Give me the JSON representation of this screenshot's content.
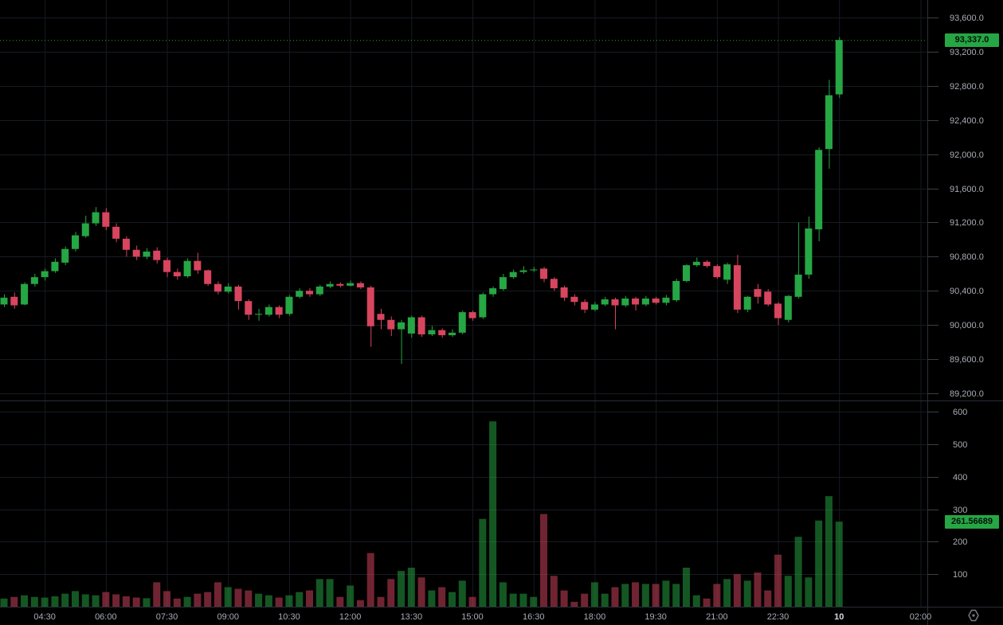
{
  "app": {
    "theme": "dark",
    "bg_color": "#000000",
    "grid_color": "#161a22",
    "separator_color": "#2a2e39",
    "axis_text_color": "#a9acb5",
    "axis_bold_text_color": "#d6d9e0",
    "up_color": "#26a644",
    "down_color": "#d7455e",
    "volume_opacity": 0.52,
    "last_price_label": {
      "text": "93,337.0",
      "bg": "#26a644"
    },
    "last_volume_label": {
      "text": "261.56689",
      "bg": "#26a644"
    },
    "icons": [
      {
        "name": "timezone-settings-icon",
        "glyph": "hexagon-dot",
        "color": "#787b86"
      }
    ]
  },
  "chart_data": {
    "type": "candlestick",
    "title": "",
    "interval": "15m",
    "legend_position": "none",
    "grid": true,
    "panes": [
      {
        "name": "price",
        "ylim": [
          89200,
          93600
        ],
        "ticks": [
          {
            "v": 93600,
            "label": "93,600.0"
          },
          {
            "v": 93200,
            "label": "93,200.0"
          },
          {
            "v": 92800,
            "label": "92,800.0"
          },
          {
            "v": 92400,
            "label": "92,400.0"
          },
          {
            "v": 92000,
            "label": "92,000.0"
          },
          {
            "v": 91600,
            "label": "91,600.0"
          },
          {
            "v": 91200,
            "label": "91,200.0"
          },
          {
            "v": 90800,
            "label": "90,800.0"
          },
          {
            "v": 90400,
            "label": "90,400.0"
          },
          {
            "v": 90000,
            "label": "90,000.0"
          },
          {
            "v": 89600,
            "label": "89,600.0"
          },
          {
            "v": 89200,
            "label": "89,200.0"
          }
        ],
        "last_value": 93337.0
      },
      {
        "name": "volume",
        "ylim": [
          0,
          600
        ],
        "ticks": [
          {
            "v": 600,
            "label": "600"
          },
          {
            "v": 500,
            "label": "500"
          },
          {
            "v": 400,
            "label": "400"
          },
          {
            "v": 300,
            "label": "300"
          },
          {
            "v": 200,
            "label": "200"
          },
          {
            "v": 100,
            "label": "100"
          }
        ],
        "last_value": 261.56689
      }
    ],
    "time_axis": {
      "labels": [
        {
          "i": 4,
          "text": "04:30",
          "bold": false
        },
        {
          "i": 10,
          "text": "06:00",
          "bold": false
        },
        {
          "i": 16,
          "text": "07:30",
          "bold": false
        },
        {
          "i": 22,
          "text": "09:00",
          "bold": false
        },
        {
          "i": 28,
          "text": "10:30",
          "bold": false
        },
        {
          "i": 34,
          "text": "12:00",
          "bold": false
        },
        {
          "i": 40,
          "text": "13:30",
          "bold": false
        },
        {
          "i": 46,
          "text": "15:00",
          "bold": false
        },
        {
          "i": 52,
          "text": "16:30",
          "bold": false
        },
        {
          "i": 58,
          "text": "18:00",
          "bold": false
        },
        {
          "i": 64,
          "text": "19:30",
          "bold": false
        },
        {
          "i": 70,
          "text": "21:00",
          "bold": false
        },
        {
          "i": 76,
          "text": "22:30",
          "bold": false
        },
        {
          "i": 82,
          "text": "10",
          "bold": true
        },
        {
          "i": 90,
          "text": "02:00",
          "bold": false
        }
      ]
    },
    "candles_format": [
      "time",
      "open",
      "high",
      "low",
      "close",
      "volume"
    ],
    "candles": [
      [
        "03:30",
        90240,
        90360,
        90210,
        90320,
        25
      ],
      [
        "03:45",
        90330,
        90380,
        90190,
        90230,
        30
      ],
      [
        "04:00",
        90240,
        90500,
        90230,
        90480,
        35
      ],
      [
        "04:15",
        90480,
        90600,
        90450,
        90560,
        30
      ],
      [
        "04:30",
        90560,
        90660,
        90520,
        90630,
        28
      ],
      [
        "04:45",
        90630,
        90780,
        90610,
        90740,
        32
      ],
      [
        "05:00",
        90730,
        90920,
        90700,
        90890,
        40
      ],
      [
        "05:15",
        90890,
        91090,
        90860,
        91050,
        48
      ],
      [
        "05:30",
        91040,
        91280,
        91020,
        91190,
        38
      ],
      [
        "05:45",
        91190,
        91380,
        91160,
        91320,
        35
      ],
      [
        "06:00",
        91320,
        91370,
        91110,
        91150,
        45
      ],
      [
        "06:15",
        91150,
        91190,
        90970,
        91010,
        38
      ],
      [
        "06:30",
        91010,
        91040,
        90800,
        90880,
        32
      ],
      [
        "06:45",
        90880,
        90930,
        90760,
        90800,
        28
      ],
      [
        "07:00",
        90800,
        90900,
        90770,
        90860,
        26
      ],
      [
        "07:15",
        90870,
        90910,
        90720,
        90760,
        75
      ],
      [
        "07:30",
        90760,
        90790,
        90560,
        90620,
        48
      ],
      [
        "07:45",
        90620,
        90660,
        90530,
        90570,
        25
      ],
      [
        "08:00",
        90570,
        90780,
        90550,
        90750,
        30
      ],
      [
        "08:15",
        90750,
        90845,
        90600,
        90640,
        40
      ],
      [
        "08:30",
        90640,
        90650,
        90460,
        90480,
        45
      ],
      [
        "08:45",
        90480,
        90510,
        90360,
        90390,
        75
      ],
      [
        "09:00",
        90390,
        90490,
        90370,
        90450,
        60
      ],
      [
        "09:15",
        90450,
        90470,
        90180,
        90280,
        55
      ],
      [
        "09:30",
        90280,
        90300,
        90060,
        90120,
        50
      ],
      [
        "09:45",
        90120,
        90190,
        90050,
        90130,
        40
      ],
      [
        "10:00",
        90120,
        90240,
        90100,
        90210,
        35
      ],
      [
        "10:15",
        90210,
        90230,
        90080,
        90120,
        28
      ],
      [
        "10:30",
        90130,
        90350,
        90110,
        90330,
        35
      ],
      [
        "10:45",
        90330,
        90430,
        90310,
        90400,
        45
      ],
      [
        "11:00",
        90400,
        90430,
        90330,
        90360,
        50
      ],
      [
        "11:15",
        90360,
        90470,
        90340,
        90450,
        85
      ],
      [
        "11:30",
        90450,
        90510,
        90430,
        90480,
        85
      ],
      [
        "11:45",
        90480,
        90500,
        90440,
        90460,
        30
      ],
      [
        "12:00",
        90460,
        90520,
        90450,
        90490,
        65
      ],
      [
        "12:15",
        90490,
        90510,
        90420,
        90440,
        20
      ],
      [
        "12:30",
        90440,
        90460,
        89745,
        89985,
        165
      ],
      [
        "12:45",
        90130,
        90190,
        89950,
        90060,
        30
      ],
      [
        "13:00",
        90060,
        90100,
        89870,
        89950,
        85
      ],
      [
        "13:15",
        89950,
        90060,
        89545,
        90030,
        110
      ],
      [
        "13:30",
        89900,
        90110,
        89850,
        90090,
        120
      ],
      [
        "13:45",
        90090,
        90110,
        89860,
        89890,
        90
      ],
      [
        "14:00",
        89890,
        89990,
        89870,
        89940,
        50
      ],
      [
        "14:15",
        89940,
        89960,
        89850,
        89880,
        60
      ],
      [
        "14:30",
        89880,
        89950,
        89860,
        89910,
        45
      ],
      [
        "14:45",
        89910,
        90170,
        89890,
        90150,
        80
      ],
      [
        "15:00",
        90150,
        90170,
        90050,
        90080,
        30
      ],
      [
        "15:15",
        90090,
        90380,
        90070,
        90360,
        270
      ],
      [
        "15:30",
        90360,
        90450,
        90330,
        90430,
        570
      ],
      [
        "15:45",
        90420,
        90600,
        90400,
        90560,
        75
      ],
      [
        "16:00",
        90560,
        90650,
        90540,
        90620,
        40
      ],
      [
        "16:15",
        90620,
        90690,
        90600,
        90640,
        40
      ],
      [
        "16:30",
        90640,
        90680,
        90620,
        90650,
        30
      ],
      [
        "16:45",
        90660,
        90680,
        90500,
        90540,
        285
      ],
      [
        "17:00",
        90540,
        90560,
        90400,
        90430,
        95
      ],
      [
        "17:15",
        90440,
        90460,
        90280,
        90320,
        50
      ],
      [
        "17:30",
        90330,
        90360,
        90230,
        90270,
        15
      ],
      [
        "17:45",
        90270,
        90300,
        90140,
        90180,
        40
      ],
      [
        "18:00",
        90180,
        90270,
        90160,
        90240,
        75
      ],
      [
        "18:15",
        90240,
        90330,
        90220,
        90300,
        40
      ],
      [
        "18:30",
        90300,
        90320,
        89950,
        90230,
        60
      ],
      [
        "18:45",
        90230,
        90340,
        90210,
        90310,
        70
      ],
      [
        "19:00",
        90310,
        90330,
        90170,
        90240,
        75
      ],
      [
        "19:15",
        90240,
        90340,
        90220,
        90310,
        70
      ],
      [
        "19:30",
        90310,
        90330,
        90240,
        90260,
        70
      ],
      [
        "19:45",
        90260,
        90350,
        90230,
        90320,
        80
      ],
      [
        "20:00",
        90290,
        90540,
        90270,
        90515,
        70
      ],
      [
        "20:15",
        90515,
        90710,
        90500,
        90700,
        120
      ],
      [
        "20:30",
        90700,
        90790,
        90680,
        90740,
        35
      ],
      [
        "20:45",
        90740,
        90760,
        90670,
        90690,
        25
      ],
      [
        "21:00",
        90690,
        90710,
        90540,
        90560,
        70
      ],
      [
        "21:15",
        90530,
        90730,
        90480,
        90710,
        85
      ],
      [
        "21:30",
        90700,
        90820,
        90140,
        90180,
        100
      ],
      [
        "21:45",
        90180,
        90340,
        90150,
        90330,
        80
      ],
      [
        "22:00",
        90420,
        90480,
        90250,
        90330,
        105
      ],
      [
        "22:15",
        90390,
        90420,
        90220,
        90240,
        50
      ],
      [
        "22:30",
        90250,
        90270,
        90000,
        90080,
        160
      ],
      [
        "22:45",
        90060,
        90350,
        90030,
        90340,
        95
      ],
      [
        "23:00",
        90330,
        91200,
        90310,
        90590,
        215
      ],
      [
        "23:15",
        90590,
        91270,
        90540,
        91130,
        90
      ],
      [
        "23:30",
        91120,
        92080,
        90980,
        92050,
        265
      ],
      [
        "23:45",
        92060,
        92870,
        91830,
        92690,
        340
      ],
      [
        "00:00",
        92700,
        93370,
        92660,
        93337,
        261.56689
      ]
    ]
  }
}
